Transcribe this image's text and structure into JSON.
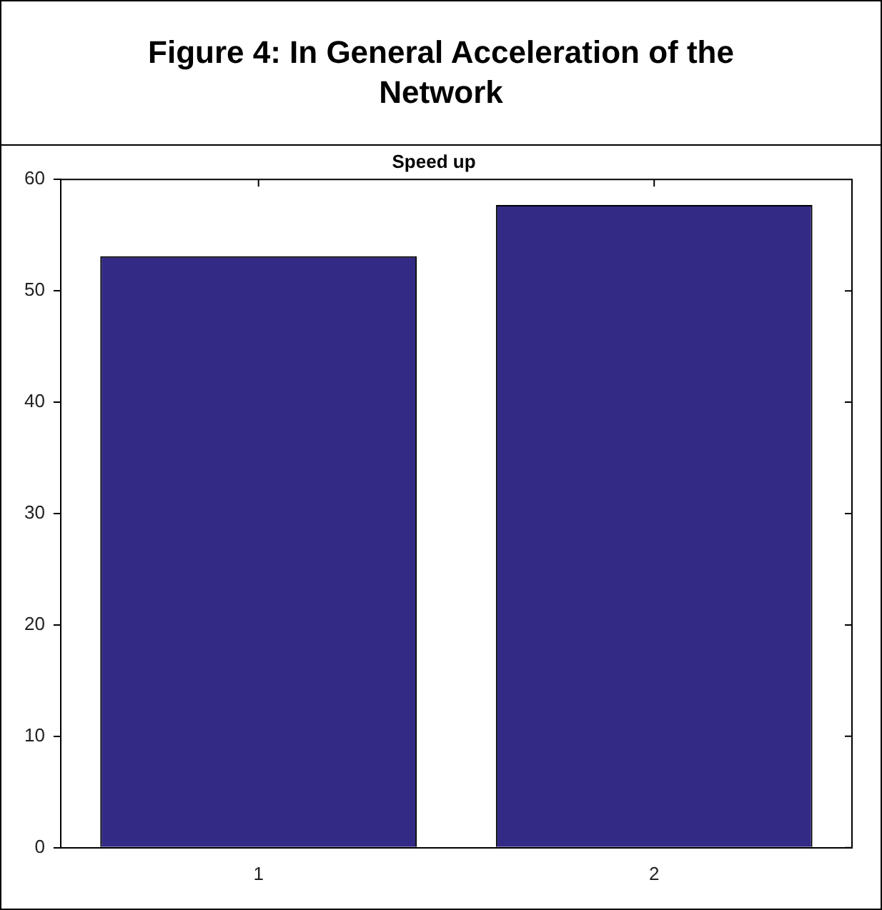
{
  "chart_data": {
    "type": "bar",
    "title": "Figure 4: In General Acceleration of the Network",
    "subtitle": "Speed up",
    "categories": [
      "1",
      "2"
    ],
    "values": [
      53.1,
      57.7
    ],
    "color": "#332a86",
    "ylim": [
      0,
      60
    ],
    "yticks": [
      0,
      10,
      20,
      30,
      40,
      50,
      60
    ],
    "grid": false,
    "legend": false
  }
}
